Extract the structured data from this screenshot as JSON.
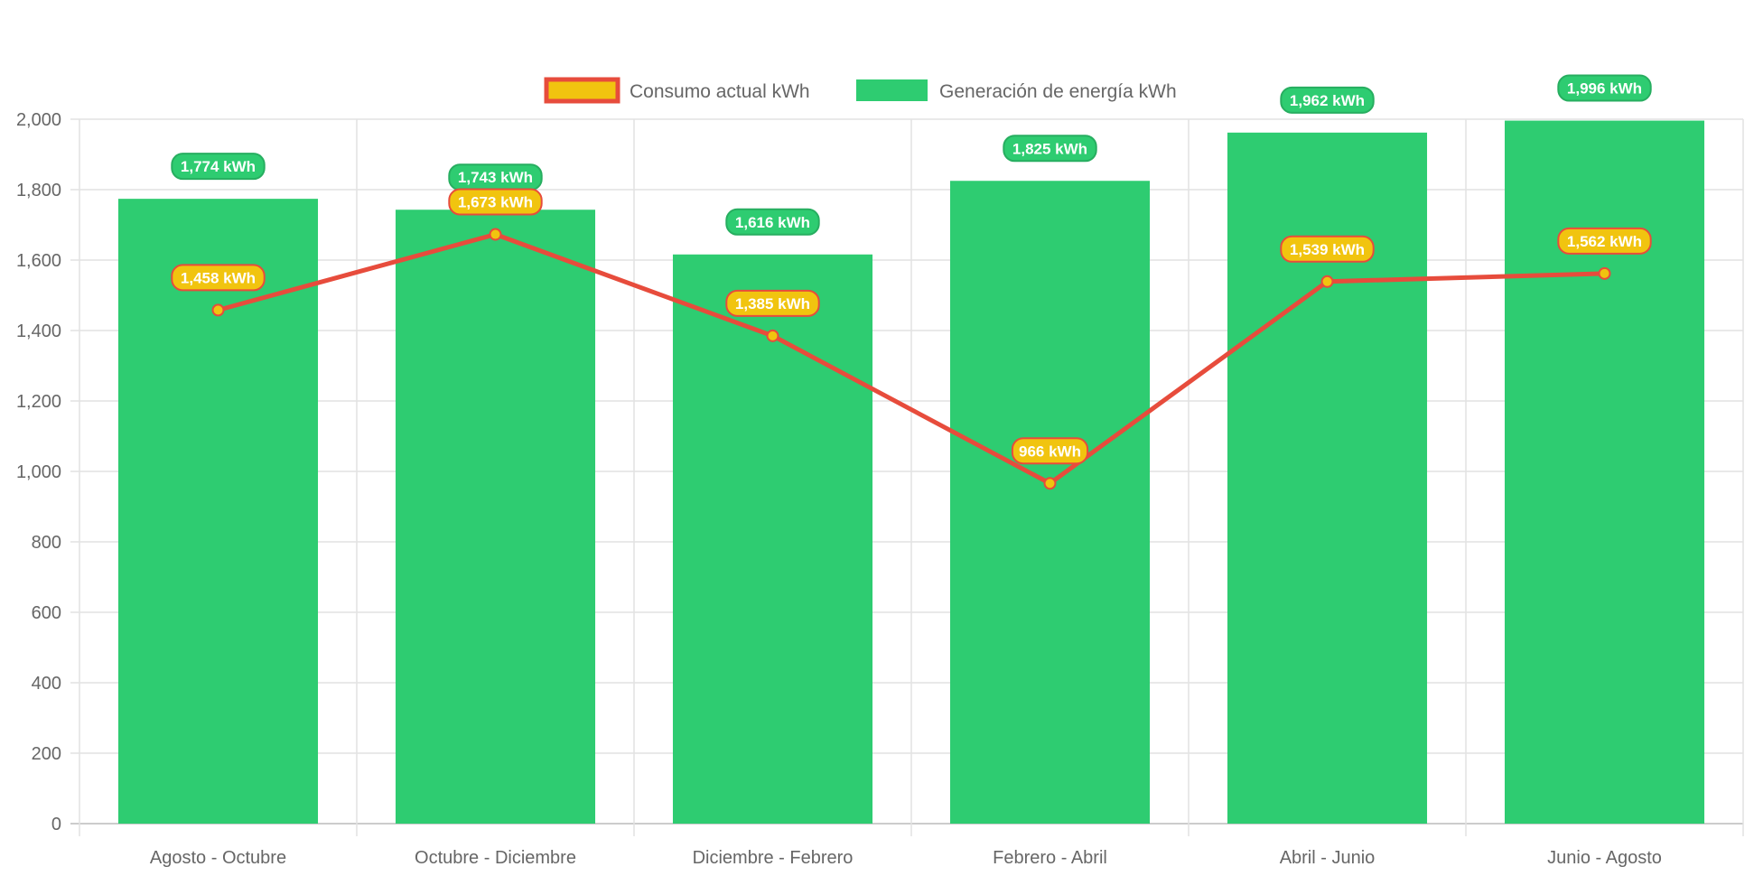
{
  "chart_data": {
    "type": "bar",
    "title": "",
    "xlabel": "",
    "ylabel": "",
    "ylim": [
      0,
      2000
    ],
    "ytick_step": 200,
    "grid": true,
    "legend_position": "top",
    "categories": [
      "Agosto - Octubre",
      "Octubre - Diciembre",
      "Diciembre - Febrero",
      "Febrero - Abril",
      "Abril - Junio",
      "Junio - Agosto"
    ],
    "series": [
      {
        "name": "Consumo actual kWh",
        "type": "line",
        "color": "#e74c3c",
        "fill": "#f1c40f",
        "values": [
          1458,
          1673,
          1385,
          966,
          1539,
          1562
        ]
      },
      {
        "name": "Generación de energía kWh",
        "type": "bar",
        "color": "#2ecc71",
        "values": [
          1774,
          1743,
          1616,
          1825,
          1962,
          1996
        ]
      }
    ],
    "label_suffix": " kWh"
  }
}
